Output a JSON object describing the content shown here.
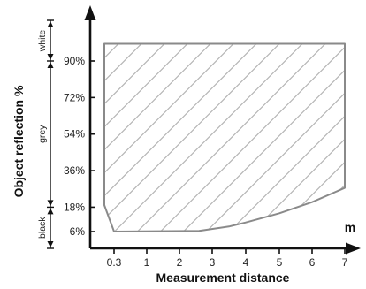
{
  "chart_data": {
    "type": "area",
    "title": "",
    "xlabel": "Measurement distance",
    "ylabel": "Object reflection %",
    "x_unit": "m",
    "x_ticks": [
      "0.3",
      "1",
      "2",
      "3",
      "4",
      "5",
      "6",
      "7"
    ],
    "y_ticks": [
      "6%",
      "18%",
      "36%",
      "54%",
      "72%",
      "90%"
    ],
    "reflection_bands": [
      {
        "label": "black",
        "from": 0,
        "to": 18
      },
      {
        "label": "grey",
        "from": 18,
        "to": 90
      },
      {
        "label": "white",
        "from": 90,
        "to": 100
      }
    ],
    "series": [
      {
        "upper_boundary": [
          {
            "x": 0.1,
            "y": 98.5
          },
          {
            "x": 7,
            "y": 98.5
          }
        ],
        "lower_boundary": [
          {
            "x": 0.1,
            "y": 19
          },
          {
            "x": 0.3,
            "y": 6
          },
          {
            "x": 2.6,
            "y": 6.3
          },
          {
            "x": 3.5,
            "y": 8.5
          },
          {
            "x": 4,
            "y": 10.5
          },
          {
            "x": 5,
            "y": 15
          },
          {
            "x": 6,
            "y": 20.5
          },
          {
            "x": 7,
            "y": 27.5
          }
        ],
        "fill_pattern": "diagonal-hatch"
      }
    ],
    "xlim": [
      -0.3,
      7.3
    ],
    "ylim": [
      0,
      105
    ],
    "grid": false,
    "legend": "none",
    "colors": {
      "axis": "#111111",
      "outline": "#8a8a8a",
      "hatch": "#b5b5b5"
    }
  }
}
